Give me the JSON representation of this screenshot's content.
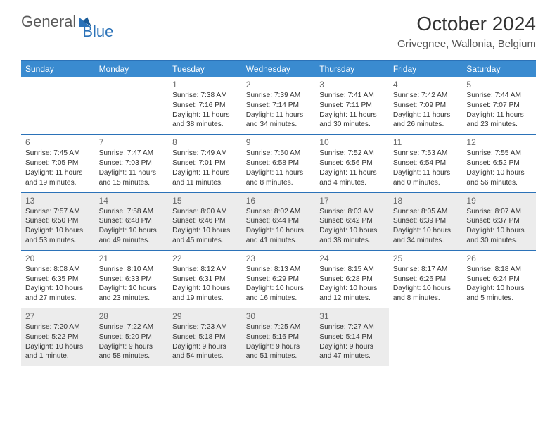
{
  "logo": {
    "text1": "General",
    "text2": "Blue"
  },
  "title": "October 2024",
  "location": "Grivegnee, Wallonia, Belgium",
  "colors": {
    "header_bg": "#3a8bd0",
    "border": "#2b72b8",
    "shaded": "#ececec",
    "text": "#333333",
    "logo_gray": "#5a5a5a",
    "logo_blue": "#2b72b8"
  },
  "weekdays": [
    "Sunday",
    "Monday",
    "Tuesday",
    "Wednesday",
    "Thursday",
    "Friday",
    "Saturday"
  ],
  "weeks": [
    {
      "shaded": false,
      "days": [
        {
          "n": "",
          "sr": "",
          "ss": "",
          "dl": ""
        },
        {
          "n": "",
          "sr": "",
          "ss": "",
          "dl": ""
        },
        {
          "n": "1",
          "sr": "Sunrise: 7:38 AM",
          "ss": "Sunset: 7:16 PM",
          "dl": "Daylight: 11 hours and 38 minutes."
        },
        {
          "n": "2",
          "sr": "Sunrise: 7:39 AM",
          "ss": "Sunset: 7:14 PM",
          "dl": "Daylight: 11 hours and 34 minutes."
        },
        {
          "n": "3",
          "sr": "Sunrise: 7:41 AM",
          "ss": "Sunset: 7:11 PM",
          "dl": "Daylight: 11 hours and 30 minutes."
        },
        {
          "n": "4",
          "sr": "Sunrise: 7:42 AM",
          "ss": "Sunset: 7:09 PM",
          "dl": "Daylight: 11 hours and 26 minutes."
        },
        {
          "n": "5",
          "sr": "Sunrise: 7:44 AM",
          "ss": "Sunset: 7:07 PM",
          "dl": "Daylight: 11 hours and 23 minutes."
        }
      ]
    },
    {
      "shaded": false,
      "days": [
        {
          "n": "6",
          "sr": "Sunrise: 7:45 AM",
          "ss": "Sunset: 7:05 PM",
          "dl": "Daylight: 11 hours and 19 minutes."
        },
        {
          "n": "7",
          "sr": "Sunrise: 7:47 AM",
          "ss": "Sunset: 7:03 PM",
          "dl": "Daylight: 11 hours and 15 minutes."
        },
        {
          "n": "8",
          "sr": "Sunrise: 7:49 AM",
          "ss": "Sunset: 7:01 PM",
          "dl": "Daylight: 11 hours and 11 minutes."
        },
        {
          "n": "9",
          "sr": "Sunrise: 7:50 AM",
          "ss": "Sunset: 6:58 PM",
          "dl": "Daylight: 11 hours and 8 minutes."
        },
        {
          "n": "10",
          "sr": "Sunrise: 7:52 AM",
          "ss": "Sunset: 6:56 PM",
          "dl": "Daylight: 11 hours and 4 minutes."
        },
        {
          "n": "11",
          "sr": "Sunrise: 7:53 AM",
          "ss": "Sunset: 6:54 PM",
          "dl": "Daylight: 11 hours and 0 minutes."
        },
        {
          "n": "12",
          "sr": "Sunrise: 7:55 AM",
          "ss": "Sunset: 6:52 PM",
          "dl": "Daylight: 10 hours and 56 minutes."
        }
      ]
    },
    {
      "shaded": true,
      "days": [
        {
          "n": "13",
          "sr": "Sunrise: 7:57 AM",
          "ss": "Sunset: 6:50 PM",
          "dl": "Daylight: 10 hours and 53 minutes."
        },
        {
          "n": "14",
          "sr": "Sunrise: 7:58 AM",
          "ss": "Sunset: 6:48 PM",
          "dl": "Daylight: 10 hours and 49 minutes."
        },
        {
          "n": "15",
          "sr": "Sunrise: 8:00 AM",
          "ss": "Sunset: 6:46 PM",
          "dl": "Daylight: 10 hours and 45 minutes."
        },
        {
          "n": "16",
          "sr": "Sunrise: 8:02 AM",
          "ss": "Sunset: 6:44 PM",
          "dl": "Daylight: 10 hours and 41 minutes."
        },
        {
          "n": "17",
          "sr": "Sunrise: 8:03 AM",
          "ss": "Sunset: 6:42 PM",
          "dl": "Daylight: 10 hours and 38 minutes."
        },
        {
          "n": "18",
          "sr": "Sunrise: 8:05 AM",
          "ss": "Sunset: 6:39 PM",
          "dl": "Daylight: 10 hours and 34 minutes."
        },
        {
          "n": "19",
          "sr": "Sunrise: 8:07 AM",
          "ss": "Sunset: 6:37 PM",
          "dl": "Daylight: 10 hours and 30 minutes."
        }
      ]
    },
    {
      "shaded": false,
      "days": [
        {
          "n": "20",
          "sr": "Sunrise: 8:08 AM",
          "ss": "Sunset: 6:35 PM",
          "dl": "Daylight: 10 hours and 27 minutes."
        },
        {
          "n": "21",
          "sr": "Sunrise: 8:10 AM",
          "ss": "Sunset: 6:33 PM",
          "dl": "Daylight: 10 hours and 23 minutes."
        },
        {
          "n": "22",
          "sr": "Sunrise: 8:12 AM",
          "ss": "Sunset: 6:31 PM",
          "dl": "Daylight: 10 hours and 19 minutes."
        },
        {
          "n": "23",
          "sr": "Sunrise: 8:13 AM",
          "ss": "Sunset: 6:29 PM",
          "dl": "Daylight: 10 hours and 16 minutes."
        },
        {
          "n": "24",
          "sr": "Sunrise: 8:15 AM",
          "ss": "Sunset: 6:28 PM",
          "dl": "Daylight: 10 hours and 12 minutes."
        },
        {
          "n": "25",
          "sr": "Sunrise: 8:17 AM",
          "ss": "Sunset: 6:26 PM",
          "dl": "Daylight: 10 hours and 8 minutes."
        },
        {
          "n": "26",
          "sr": "Sunrise: 8:18 AM",
          "ss": "Sunset: 6:24 PM",
          "dl": "Daylight: 10 hours and 5 minutes."
        }
      ]
    },
    {
      "shaded": true,
      "days": [
        {
          "n": "27",
          "sr": "Sunrise: 7:20 AM",
          "ss": "Sunset: 5:22 PM",
          "dl": "Daylight: 10 hours and 1 minute."
        },
        {
          "n": "28",
          "sr": "Sunrise: 7:22 AM",
          "ss": "Sunset: 5:20 PM",
          "dl": "Daylight: 9 hours and 58 minutes."
        },
        {
          "n": "29",
          "sr": "Sunrise: 7:23 AM",
          "ss": "Sunset: 5:18 PM",
          "dl": "Daylight: 9 hours and 54 minutes."
        },
        {
          "n": "30",
          "sr": "Sunrise: 7:25 AM",
          "ss": "Sunset: 5:16 PM",
          "dl": "Daylight: 9 hours and 51 minutes."
        },
        {
          "n": "31",
          "sr": "Sunrise: 7:27 AM",
          "ss": "Sunset: 5:14 PM",
          "dl": "Daylight: 9 hours and 47 minutes."
        },
        {
          "n": "",
          "sr": "",
          "ss": "",
          "dl": ""
        },
        {
          "n": "",
          "sr": "",
          "ss": "",
          "dl": ""
        }
      ]
    }
  ]
}
